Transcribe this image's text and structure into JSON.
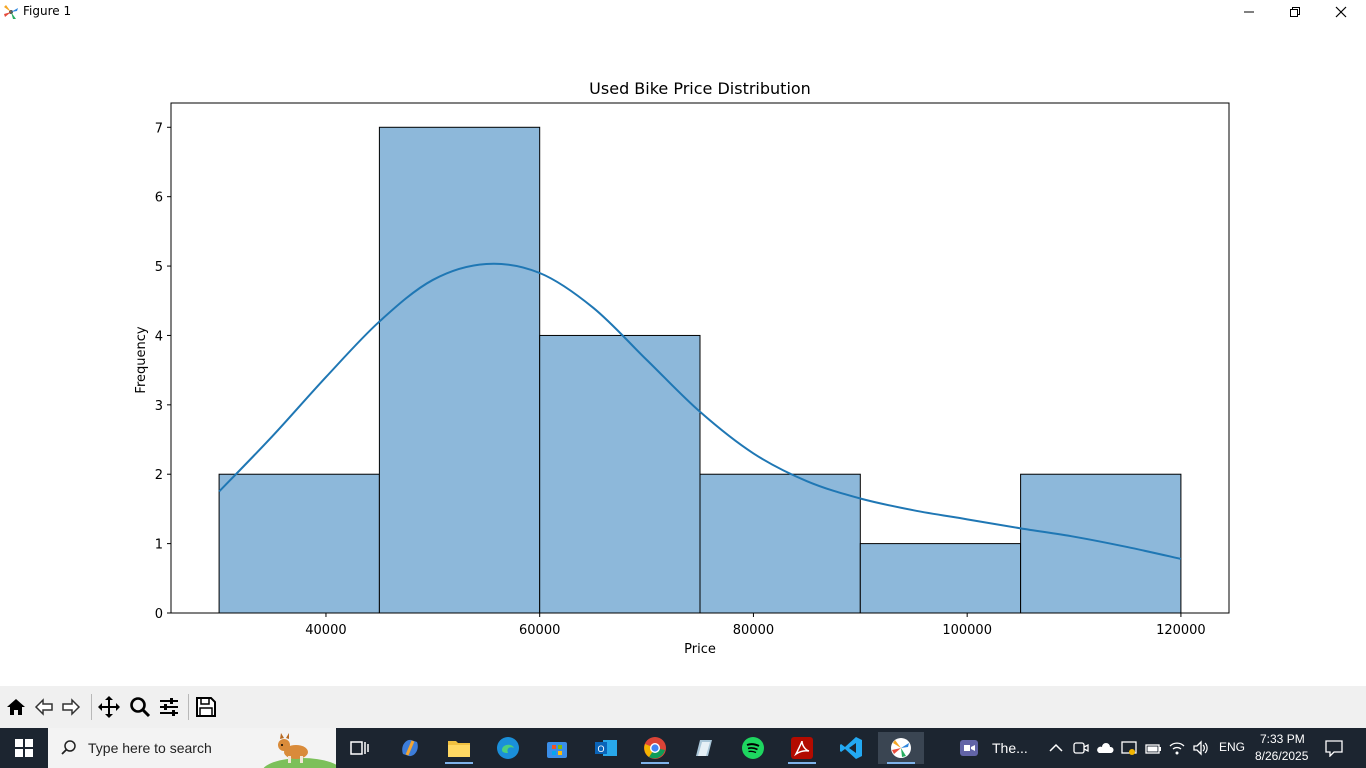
{
  "window": {
    "title": "Figure 1"
  },
  "chart_data": {
    "type": "bar",
    "title": "Used Bike Price Distribution",
    "xlabel": "Price",
    "ylabel": "Frequency",
    "bins": [
      {
        "x0": 30000,
        "x1": 45000,
        "count": 2
      },
      {
        "x0": 45000,
        "x1": 60000,
        "count": 7
      },
      {
        "x0": 60000,
        "x1": 75000,
        "count": 4
      },
      {
        "x0": 75000,
        "x1": 90000,
        "count": 2
      },
      {
        "x0": 90000,
        "x1": 105000,
        "count": 1
      },
      {
        "x0": 105000,
        "x1": 120000,
        "count": 2
      }
    ],
    "kde": {
      "x": [
        30000,
        35000,
        40000,
        45000,
        50000,
        55000,
        60000,
        65000,
        70000,
        75000,
        80000,
        85000,
        90000,
        95000,
        100000,
        105000,
        110000,
        115000,
        120000
      ],
      "y": [
        1.75,
        2.55,
        3.4,
        4.2,
        4.8,
        5.03,
        4.9,
        4.4,
        3.65,
        2.9,
        2.3,
        1.9,
        1.65,
        1.48,
        1.35,
        1.22,
        1.1,
        0.95,
        0.78
      ]
    },
    "xlim": [
      25500,
      124500
    ],
    "ylim": [
      0,
      7.35
    ],
    "xticks": [
      "40000",
      "60000",
      "80000",
      "100000",
      "120000"
    ],
    "xtick_values": [
      40000,
      60000,
      80000,
      100000,
      120000
    ],
    "yticks": [
      "0",
      "1",
      "2",
      "3",
      "4",
      "5",
      "6",
      "7"
    ],
    "ytick_values": [
      0,
      1,
      2,
      3,
      4,
      5,
      6,
      7
    ],
    "bar_color": "#8db8da",
    "edge_color": "#000000",
    "kde_color": "#1f77b4",
    "grid": false
  },
  "toolbar": {
    "buttons": [
      "home-icon",
      "back-icon",
      "forward-icon",
      "pan-icon",
      "zoom-icon",
      "configure-icon",
      "save-icon"
    ]
  },
  "taskbar": {
    "search_placeholder": "Type here to search",
    "teams_label": "The...",
    "language": "ENG",
    "time": "7:33 PM",
    "date": "8/26/2025"
  }
}
